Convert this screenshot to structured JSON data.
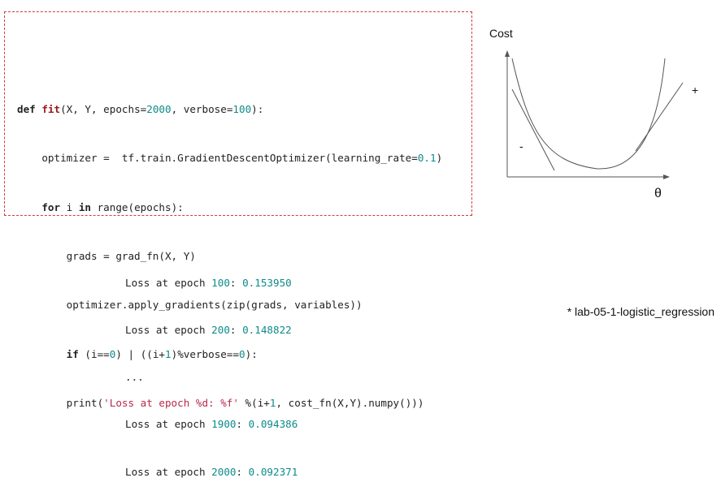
{
  "code": {
    "def_kw": "def",
    "fn_name": "fit",
    "sig_pre": "(X, Y, epochs=",
    "sig_epochs": "2000",
    "sig_mid": ", verbose=",
    "sig_verbose": "100",
    "sig_post": "):",
    "l2_pre": "    optimizer =  tf.train.GradientDescentOptimizer(learning_rate=",
    "l2_num": "0.1",
    "l2_post": ")",
    "l3_indent": "    ",
    "l3_for": "for",
    "l3_mid": " i ",
    "l3_in": "in",
    "l3_post": " range(epochs):",
    "l4": "        grads = grad_fn(X, Y)",
    "l5": "        optimizer.apply_gradients(zip(grads, variables))",
    "l6_indent": "        ",
    "l6_if": "if",
    "l6_a": " (i==",
    "l6_n0": "0",
    "l6_b": ") | ((i+",
    "l6_n1": "1",
    "l6_c": ")%verbose==",
    "l6_n2": "0",
    "l6_d": "):",
    "l7_pre": "        print(",
    "l7_str": "'Loss at epoch %d: %f'",
    "l7_mid": " %(i+",
    "l7_num": "1",
    "l7_post": ", cost_fn(X,Y).numpy()))"
  },
  "output": {
    "prefix": "Loss at epoch ",
    "sep": ": ",
    "ellipsis": "...",
    "rows": [
      {
        "epoch": "100",
        "loss": "0.153950"
      },
      {
        "epoch": "200",
        "loss": "0.148822"
      },
      {
        "epoch": "1900",
        "loss": "0.094386"
      },
      {
        "epoch": "2000",
        "loss": "0.092371"
      }
    ]
  },
  "diagram": {
    "y_label": "Cost",
    "x_label": "θ",
    "minus_label": "-",
    "plus_label": "+"
  },
  "footnote": "* lab-05-1-logistic_regression"
}
